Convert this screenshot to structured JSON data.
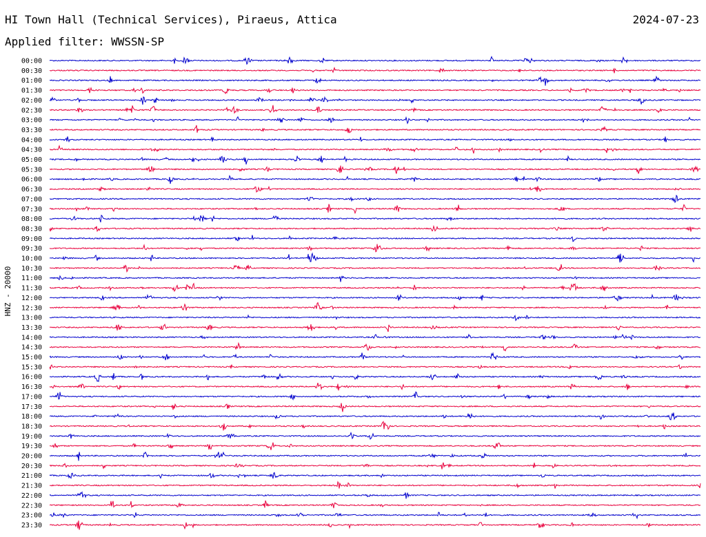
{
  "header": {
    "station": "HI Town Hall (Technical Services), Piraeus, Attica",
    "date": "2024-07-23",
    "filter_label": "Applied filter: WWSSN-SP"
  },
  "chart_data": {
    "type": "line",
    "title": "",
    "ylabel": "HNZ - 20000",
    "xlabel": "",
    "colors": {
      "even_rows": "#0000cc",
      "odd_rows": "#e8003c"
    },
    "rows": [
      "00:00",
      "00:30",
      "01:00",
      "01:30",
      "02:00",
      "02:30",
      "03:00",
      "03:30",
      "04:00",
      "04:30",
      "05:00",
      "05:30",
      "06:00",
      "06:30",
      "07:00",
      "07:30",
      "08:00",
      "08:30",
      "09:00",
      "09:30",
      "10:00",
      "10:30",
      "11:00",
      "11:30",
      "12:00",
      "12:30",
      "13:00",
      "13:30",
      "14:00",
      "14:30",
      "15:00",
      "15:30",
      "16:00",
      "16:30",
      "17:00",
      "17:30",
      "18:00",
      "18:30",
      "19:00",
      "19:30",
      "20:00",
      "20:30",
      "21:00",
      "21:30",
      "22:00",
      "22:30",
      "23:00",
      "23:30"
    ],
    "grid": false,
    "legend": "none"
  }
}
